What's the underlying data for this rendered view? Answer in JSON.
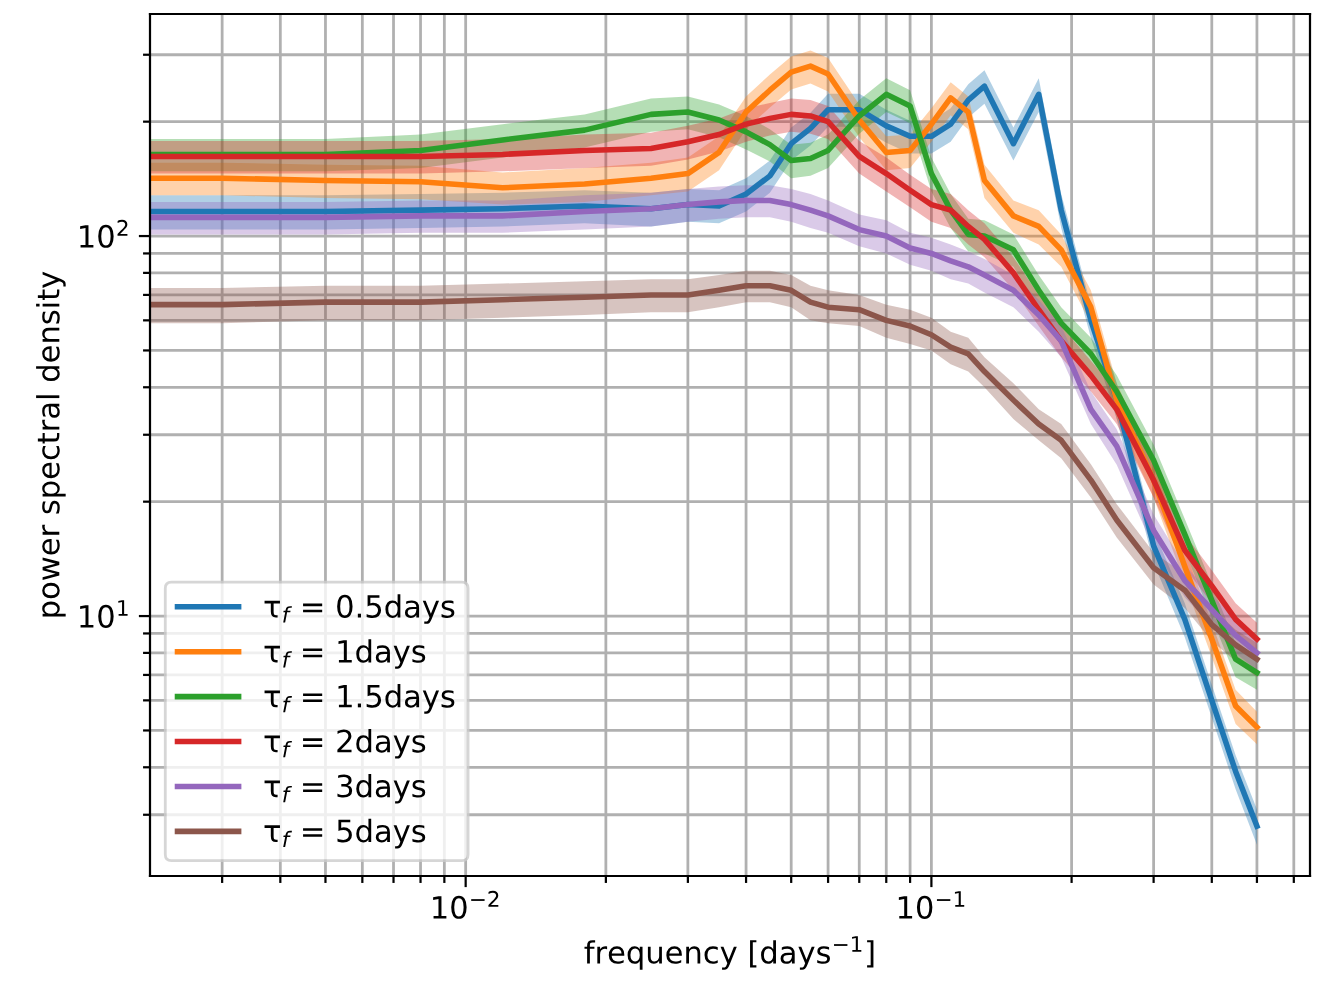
{
  "chart_data": {
    "type": "line",
    "xlabel": "frequency [days$^{−1}$]",
    "ylabel": "power spectral density",
    "log": "xy",
    "grid": true,
    "legend": "bottom left",
    "line_style": "solid",
    "marker": "none",
    "xlim": [
      0.0021,
      0.65
    ],
    "ylim": [
      2.07,
      384
    ],
    "xticks": [
      {
        "value": 0.003,
        "label": null
      },
      {
        "value": 0.004,
        "label": null
      },
      {
        "value": 0.005,
        "label": null
      },
      {
        "value": 0.006,
        "label": null
      },
      {
        "value": 0.007,
        "label": null
      },
      {
        "value": 0.008,
        "label": null
      },
      {
        "value": 0.009,
        "label": null
      },
      {
        "value": 0.01,
        "label": "10$^{−2}$"
      },
      {
        "value": 0.02,
        "label": null
      },
      {
        "value": 0.03,
        "label": null
      },
      {
        "value": 0.04,
        "label": null
      },
      {
        "value": 0.05,
        "label": null
      },
      {
        "value": 0.06,
        "label": null
      },
      {
        "value": 0.07,
        "label": null
      },
      {
        "value": 0.08,
        "label": null
      },
      {
        "value": 0.09,
        "label": null
      },
      {
        "value": 0.1,
        "label": "10$^{−1}$"
      },
      {
        "value": 0.2,
        "label": null
      },
      {
        "value": 0.3,
        "label": null
      },
      {
        "value": 0.4,
        "label": null
      },
      {
        "value": 0.5,
        "label": null
      },
      {
        "value": 0.6,
        "label": null
      }
    ],
    "yticks": [
      {
        "value": 3,
        "label": null
      },
      {
        "value": 4,
        "label": null
      },
      {
        "value": 5,
        "label": null
      },
      {
        "value": 6,
        "label": null
      },
      {
        "value": 7,
        "label": null
      },
      {
        "value": 8,
        "label": null
      },
      {
        "value": 9,
        "label": null
      },
      {
        "value": 10,
        "label": "10$^{1}$"
      },
      {
        "value": 20,
        "label": null
      },
      {
        "value": 30,
        "label": null
      },
      {
        "value": 40,
        "label": null
      },
      {
        "value": 50,
        "label": null
      },
      {
        "value": 60,
        "label": null
      },
      {
        "value": 70,
        "label": null
      },
      {
        "value": 80,
        "label": null
      },
      {
        "value": 90,
        "label": null
      },
      {
        "value": 100,
        "label": "10$^{2}$"
      },
      {
        "value": 200,
        "label": null
      },
      {
        "value": 300,
        "label": null
      }
    ],
    "x": [
      0.0021,
      0.003,
      0.005,
      0.008,
      0.012,
      0.018,
      0.025,
      0.03,
      0.035,
      0.04,
      0.045,
      0.05,
      0.055,
      0.06,
      0.07,
      0.08,
      0.09,
      0.1,
      0.11,
      0.12,
      0.13,
      0.15,
      0.17,
      0.19,
      0.22,
      0.25,
      0.3,
      0.35,
      0.4,
      0.45,
      0.5
    ],
    "series": [
      {
        "name": "τ$_{f}$ = 0.5days",
        "color": "#1f77b4",
        "values": [
          116,
          116,
          116,
          117,
          118,
          120,
          118,
          121,
          120,
          129,
          144,
          175,
          192,
          215,
          215,
          195,
          183,
          183,
          197,
          228,
          248,
          175,
          236,
          117,
          60,
          37,
          15.3,
          9.8,
          6.0,
          3.9,
          2.8
        ],
        "lower": [
          104,
          104,
          104,
          105,
          106,
          108,
          106,
          109,
          108,
          116,
          130,
          158,
          173,
          194,
          194,
          176,
          165,
          165,
          177,
          205,
          223,
          158,
          212,
          105,
          54,
          33,
          13.8,
          8.8,
          5.4,
          3.5,
          2.5
        ],
        "upper": [
          128,
          128,
          128,
          129,
          130,
          132,
          130,
          133,
          132,
          142,
          158,
          193,
          211,
          237,
          237,
          215,
          201,
          201,
          217,
          251,
          273,
          193,
          260,
          129,
          66,
          41,
          16.8,
          10.8,
          6.6,
          4.3,
          3.1
        ]
      },
      {
        "name": "τ$_{f}$ = 1days",
        "color": "#ff7f0e",
        "values": [
          142,
          142,
          140,
          139,
          134,
          137,
          142,
          146,
          166,
          212,
          242,
          270,
          280,
          267,
          202,
          166,
          168,
          197,
          231,
          212,
          140,
          113,
          106,
          92,
          65,
          37,
          22.8,
          13.5,
          8.7,
          5.8,
          5.1
        ],
        "lower": [
          128,
          128,
          126,
          125,
          121,
          123,
          128,
          131,
          149,
          191,
          218,
          243,
          252,
          240,
          182,
          149,
          151,
          177,
          208,
          191,
          126,
          102,
          95,
          83,
          59,
          33,
          20.5,
          12.2,
          7.8,
          5.2,
          4.6
        ],
        "upper": [
          156,
          156,
          154,
          153,
          147,
          151,
          156,
          161,
          183,
          233,
          266,
          297,
          308,
          294,
          222,
          183,
          185,
          217,
          254,
          233,
          154,
          124,
          117,
          101,
          72,
          41,
          25.1,
          14.9,
          9.6,
          6.4,
          5.6
        ]
      },
      {
        "name": "τ$_{f}$ = 1.5days",
        "color": "#2ca02c",
        "values": [
          164,
          164,
          164,
          168,
          179,
          190,
          209,
          212,
          202,
          188,
          174,
          158,
          160,
          168,
          207,
          236,
          220,
          146,
          117,
          101,
          100,
          92,
          72,
          59,
          49,
          39,
          25.7,
          16.4,
          11.0,
          7.7,
          7.1
        ],
        "lower": [
          148,
          148,
          148,
          151,
          161,
          171,
          188,
          191,
          182,
          169,
          157,
          142,
          144,
          151,
          186,
          212,
          198,
          131,
          105,
          91,
          90,
          83,
          65,
          53,
          44,
          35,
          23.1,
          14.8,
          9.9,
          6.9,
          6.4
        ],
        "upper": [
          180,
          180,
          180,
          185,
          197,
          209,
          230,
          233,
          222,
          207,
          191,
          174,
          176,
          185,
          228,
          260,
          242,
          161,
          129,
          111,
          110,
          101,
          79,
          65,
          54,
          43,
          28.3,
          18.0,
          12.1,
          8.5,
          7.8
        ]
      },
      {
        "name": "τ$_{f}$ = 2days",
        "color": "#d62728",
        "values": [
          162,
          162,
          162,
          162,
          164,
          168,
          170,
          177,
          185,
          197,
          204,
          209,
          207,
          200,
          162,
          146,
          132,
          121,
          117,
          106,
          98,
          80,
          64,
          53,
          43,
          35,
          22.8,
          14.9,
          12.0,
          9.8,
          8.7
        ],
        "lower": [
          146,
          146,
          146,
          146,
          148,
          151,
          153,
          159,
          167,
          177,
          184,
          188,
          186,
          180,
          146,
          131,
          119,
          109,
          105,
          95,
          88,
          72,
          58,
          48,
          39,
          32,
          20.5,
          13.4,
          10.8,
          8.8,
          7.8
        ],
        "upper": [
          178,
          178,
          178,
          178,
          180,
          185,
          187,
          195,
          204,
          217,
          224,
          230,
          228,
          220,
          178,
          161,
          145,
          133,
          129,
          117,
          108,
          88,
          70,
          58,
          47,
          39,
          25.1,
          16.4,
          13.2,
          10.8,
          9.6
        ]
      },
      {
        "name": "τ$_{f}$ = 3days",
        "color": "#9467bd",
        "values": [
          112,
          112,
          112,
          113,
          113,
          116,
          118,
          121,
          123,
          124,
          124,
          121,
          117,
          113,
          104,
          100,
          93,
          90,
          86,
          83,
          79,
          72,
          62,
          53,
          35,
          28,
          16.8,
          12.4,
          10.4,
          8.9,
          8.0
        ],
        "lower": [
          101,
          101,
          101,
          102,
          102,
          104,
          106,
          109,
          111,
          112,
          112,
          109,
          105,
          102,
          94,
          90,
          84,
          81,
          77,
          75,
          71,
          65,
          56,
          48,
          32,
          25,
          15.1,
          11.2,
          9.4,
          8.0,
          7.2
        ],
        "upper": [
          123,
          123,
          123,
          124,
          124,
          128,
          130,
          133,
          135,
          136,
          136,
          133,
          129,
          124,
          114,
          110,
          102,
          99,
          95,
          91,
          87,
          79,
          68,
          58,
          39,
          31,
          18.5,
          13.6,
          11.4,
          9.8,
          8.8
        ]
      },
      {
        "name": "τ$_{f}$ = 5days",
        "color": "#8c564b",
        "values": [
          66,
          66,
          67,
          67,
          68,
          69,
          70,
          70,
          72,
          74,
          74,
          72,
          67,
          65,
          64,
          60,
          58,
          55,
          51,
          49,
          44,
          37,
          32,
          29,
          22.8,
          17.9,
          13.4,
          11.7,
          9.5,
          8.4,
          7.7
        ],
        "lower": [
          59,
          59,
          60,
          60,
          61,
          62,
          63,
          63,
          65,
          67,
          67,
          65,
          60,
          59,
          58,
          54,
          52,
          50,
          46,
          44,
          40,
          33,
          29,
          26,
          20.5,
          16.1,
          12.1,
          10.5,
          8.6,
          7.6,
          6.9
        ],
        "upper": [
          73,
          73,
          74,
          74,
          75,
          76,
          77,
          77,
          79,
          81,
          81,
          79,
          74,
          72,
          70,
          66,
          64,
          61,
          56,
          54,
          48,
          41,
          35,
          32,
          25.1,
          19.7,
          14.7,
          12.9,
          10.5,
          9.2,
          8.5
        ]
      }
    ]
  }
}
